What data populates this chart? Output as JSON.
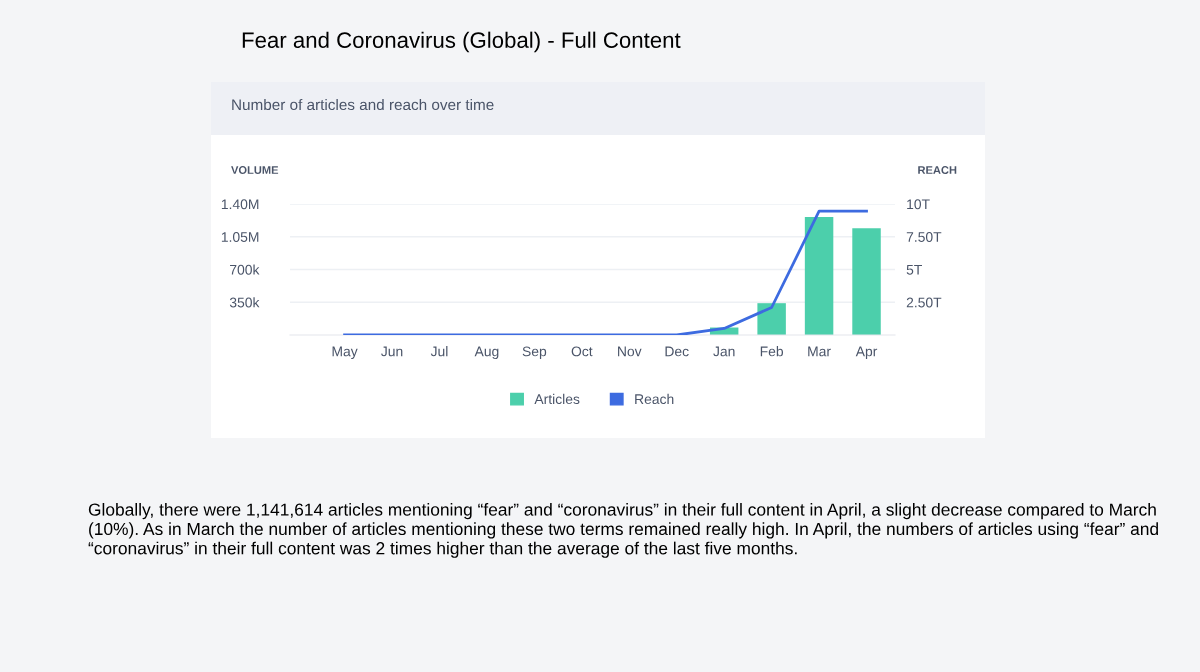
{
  "chart_data": {
    "type": "bar",
    "title": "Fear and Coronavirus (Global) - Full Content",
    "subtitle": "Number of articles and reach over time",
    "ylabel": "VOLUME",
    "y2label": "REACH",
    "categories": [
      "May",
      "Jun",
      "Jul",
      "Aug",
      "Sep",
      "Oct",
      "Nov",
      "Dec",
      "Jan",
      "Feb",
      "Mar",
      "Apr"
    ],
    "series": [
      {
        "name": "Articles",
        "color": "#4ccfab",
        "values": [
          0,
          0,
          0,
          0,
          0,
          0,
          0,
          0,
          80000,
          340000,
          1260000,
          1141614
        ]
      },
      {
        "name": "Reach",
        "type": "line",
        "axis": "y2",
        "color": "#3d6be0",
        "values": [
          0,
          0,
          0,
          0,
          0,
          0,
          0,
          0,
          0.5,
          2.1,
          9.45,
          9.45
        ]
      }
    ],
    "ylim": [
      0,
      1400000
    ],
    "yticks": [
      {
        "value": 350000,
        "label": "350k"
      },
      {
        "value": 700000,
        "label": "700k"
      },
      {
        "value": 1050000,
        "label": "1.05M"
      },
      {
        "value": 1400000,
        "label": "1.40M"
      }
    ],
    "y2lim": [
      0,
      10
    ],
    "y2ticks": [
      {
        "value": 2.5,
        "label": "2.50T"
      },
      {
        "value": 5,
        "label": "5T"
      },
      {
        "value": 7.5,
        "label": "7.50T"
      },
      {
        "value": 10,
        "label": "10T"
      }
    ],
    "grid": "y",
    "legend": "bottom",
    "marker": "none",
    "annotations": [
      "Globally, there were 1,141,614 articles mentioning “fear” and “coronavirus” in their full content in April, a slight decrease compared to March (10%). As in March the number of articles mentioning these two terms remained really high. In April, the numbers of articles using “fear” and “coronavirus” in their full content was 2 times higher than the average of the last five months."
    ]
  }
}
